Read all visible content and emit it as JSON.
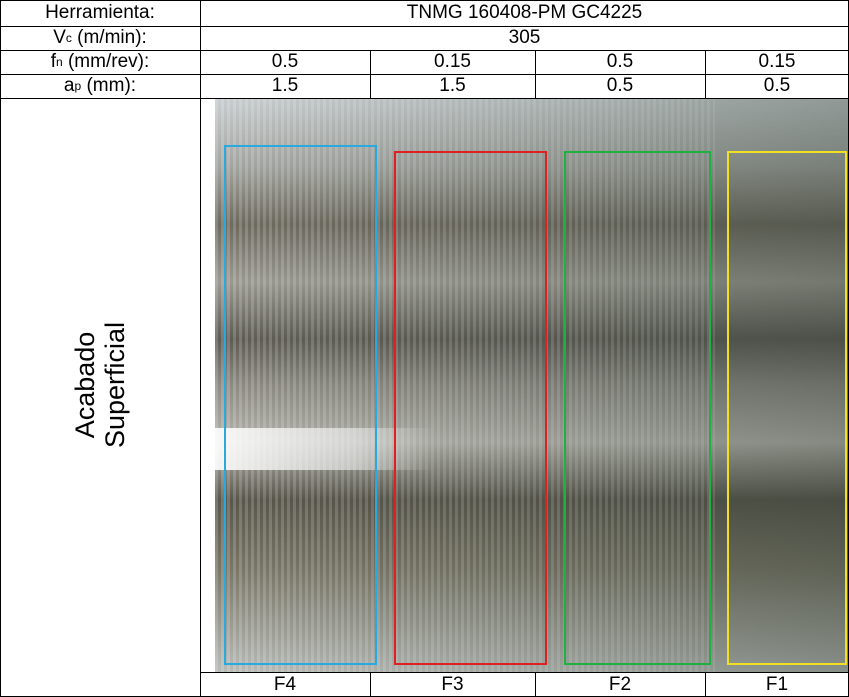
{
  "table": {
    "tool": {
      "label": "Herramienta:",
      "value": "TNMG 160408-PM GC4225"
    },
    "speed": {
      "label": {
        "main": "V",
        "sub": "c",
        "tail": " (m/min):"
      },
      "value": "305"
    },
    "feed": {
      "label": {
        "main": "f",
        "sub": "n",
        "tail": " (mm/rev):"
      },
      "values": [
        "0.5",
        "0.15",
        "0.5",
        "0.15"
      ]
    },
    "depth": {
      "label": {
        "main": "a",
        "sub": "p",
        "tail": " (mm):"
      },
      "values": [
        "1.5",
        "1.5",
        "0.5",
        "0.5"
      ]
    },
    "finish_label": [
      "Acabado",
      "Superficial"
    ],
    "samples": [
      "F4",
      "F3",
      "F2",
      "F1"
    ]
  }
}
